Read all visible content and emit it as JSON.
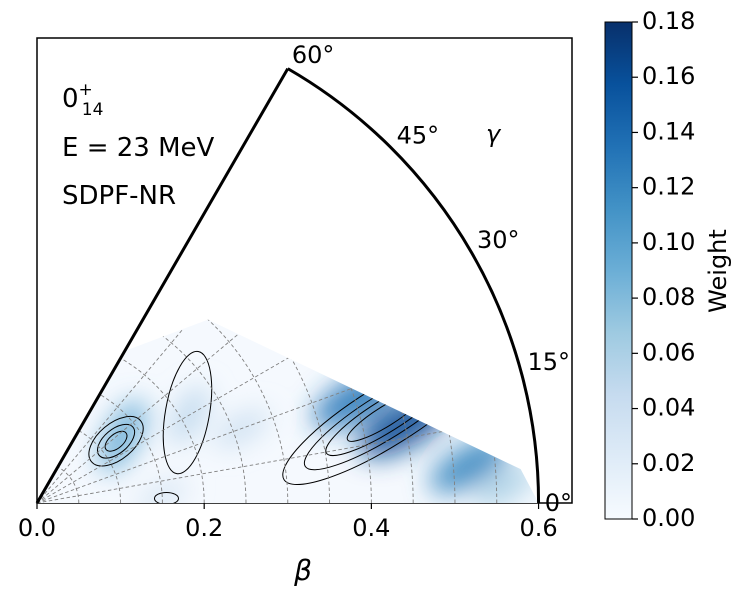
{
  "chart_data": {
    "type": "heatmap",
    "subtype": "polar-sector (beta-gamma plane) contour plot",
    "annotations": {
      "state": "0",
      "state_sup": "+",
      "state_sub": "14",
      "energy": "E = 23 MeV",
      "interaction": "SDPF-NR"
    },
    "xlabel": "β",
    "angle_label": "γ",
    "xlim": [
      0.0,
      0.64
    ],
    "x_ticks": [
      "0.0",
      "0.2",
      "0.4",
      "0.6"
    ],
    "x_tick_values": [
      0.0,
      0.2,
      0.4,
      0.6
    ],
    "beta_max": 0.6,
    "gamma_range_deg": [
      0,
      60
    ],
    "angle_ticks": [
      {
        "deg": 0,
        "label": "0°"
      },
      {
        "deg": 15,
        "label": "15°"
      },
      {
        "deg": 30,
        "label": "30°"
      },
      {
        "deg": 45,
        "label": "45°"
      },
      {
        "deg": 60,
        "label": "60°"
      }
    ],
    "colorbar": {
      "label": "Weight",
      "cmap": "Blues",
      "range": [
        0.0,
        0.18
      ],
      "ticks": [
        "0.00",
        "0.02",
        "0.04",
        "0.06",
        "0.08",
        "0.10",
        "0.12",
        "0.14",
        "0.16",
        "0.18"
      ],
      "tick_values": [
        0.0,
        0.02,
        0.04,
        0.06,
        0.08,
        0.1,
        0.12,
        0.14,
        0.16,
        0.18
      ]
    },
    "blobs": [
      {
        "beta": 0.45,
        "gamma_deg": 12,
        "weight": 0.16,
        "note": "dark ridge"
      },
      {
        "beta": 0.4,
        "gamma_deg": 18,
        "weight": 0.13,
        "note": "ridge along upper-right boundary"
      },
      {
        "beta": 0.52,
        "gamma_deg": 5,
        "weight": 0.12
      },
      {
        "beta": 0.56,
        "gamma_deg": 2,
        "weight": 0.06
      },
      {
        "beta": 0.13,
        "gamma_deg": 38,
        "weight": 0.09
      },
      {
        "beta": 0.21,
        "gamma_deg": 30,
        "weight": 0.05
      },
      {
        "beta": 0.26,
        "gamma_deg": 20,
        "weight": 0.04
      },
      {
        "beta": 0.15,
        "gamma_deg": 3,
        "weight": 0.03
      }
    ]
  }
}
